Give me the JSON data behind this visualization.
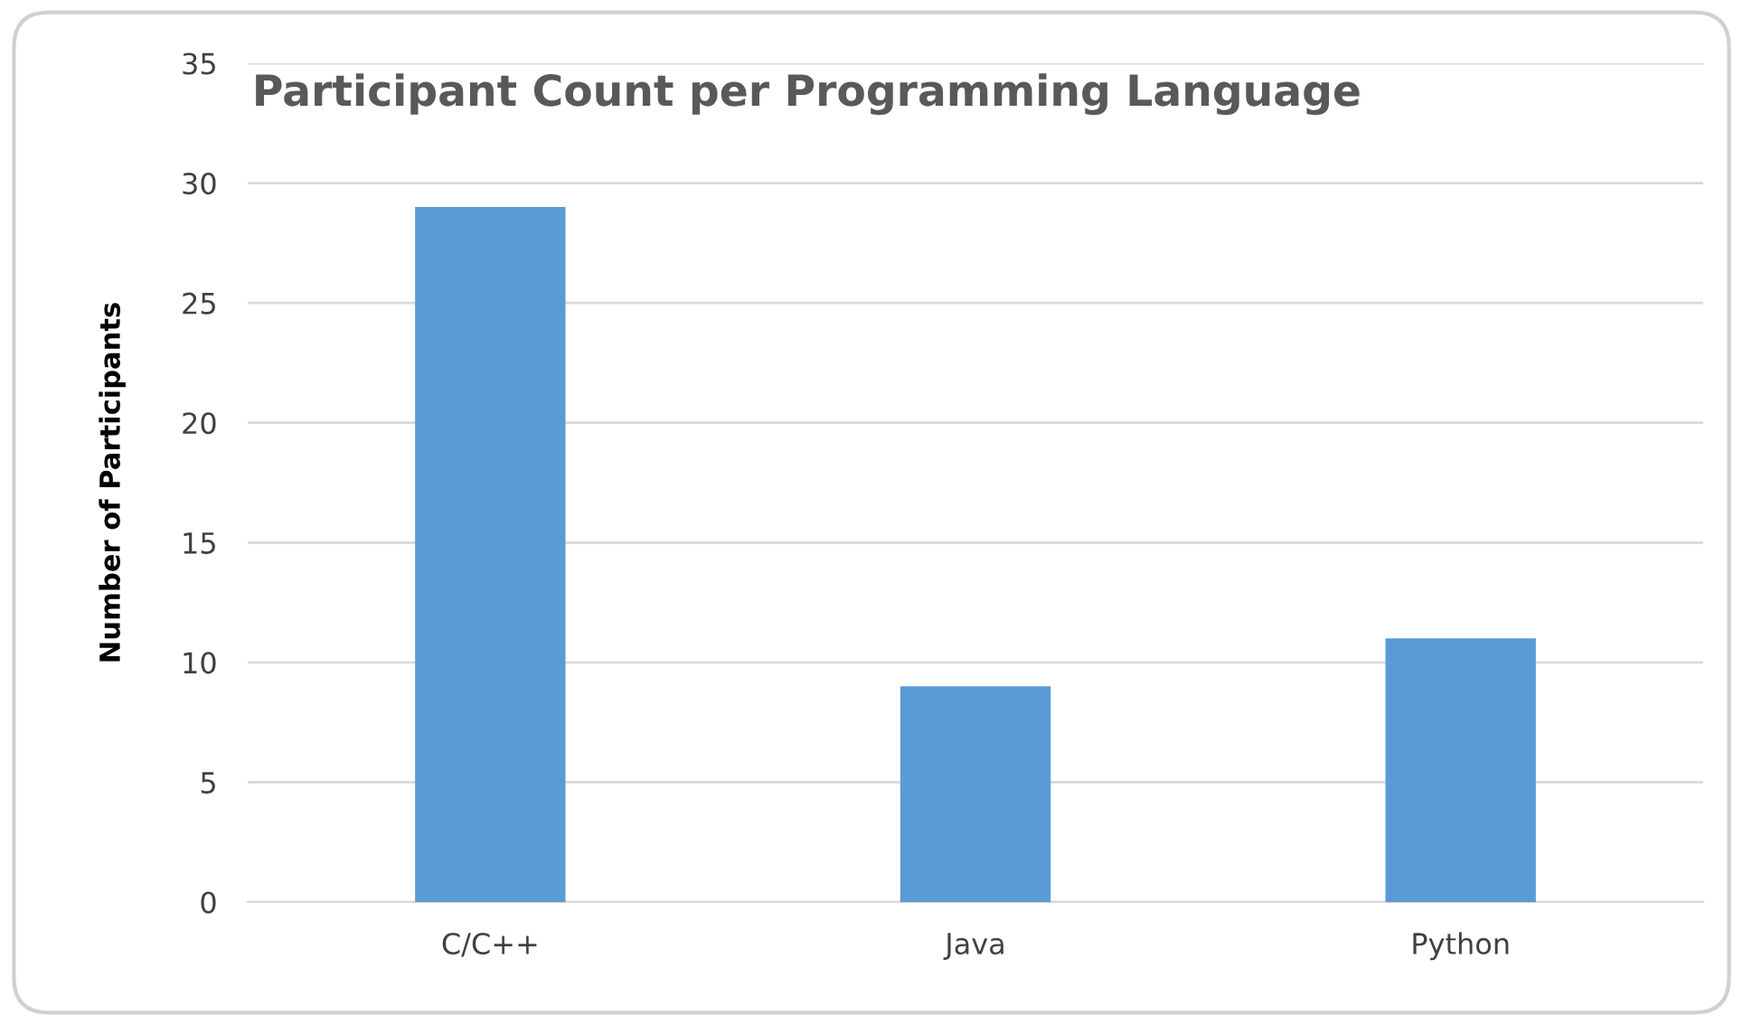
{
  "chart_data": {
    "type": "bar",
    "title": "Participant Count per Programming Language",
    "ylabel": "Number of Participants",
    "categories": [
      "C/C++",
      "Java",
      "Python"
    ],
    "values": [
      29,
      9,
      11
    ],
    "color": "#5b9bd5",
    "ylim": [
      0,
      35
    ],
    "yticks": [
      0,
      5,
      10,
      15,
      20,
      25,
      30,
      35
    ],
    "grid": "y"
  }
}
